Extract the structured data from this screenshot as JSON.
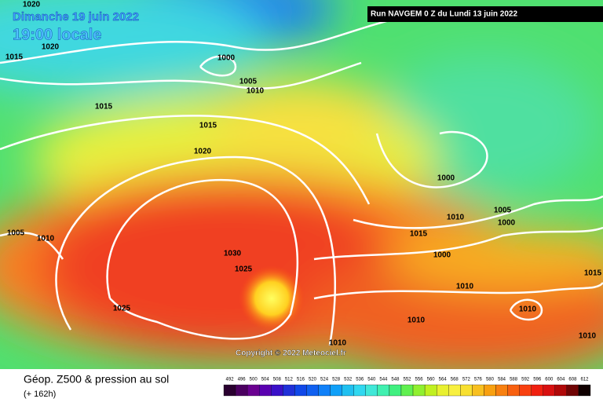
{
  "header": {
    "date": "Dimanche 19 juin 2022",
    "time": "19:00 locale",
    "run": "Run NAVGEM 0 Z du Lundi 13 juin 2022"
  },
  "copyright": "Copyright © 2022 Meteociel.fr",
  "footer": {
    "title": "Géop. Z500 & pression au sol",
    "lead": "(+ 162h)"
  },
  "isobar_labels": [
    1020,
    1020,
    1015,
    1000,
    1005,
    1010,
    1015,
    1015,
    1020,
    1000,
    1010,
    1005,
    1000,
    1015,
    1000,
    1005,
    1010,
    1030,
    1025,
    1025,
    1010,
    1010,
    1015,
    1010,
    1010,
    1010
  ],
  "scale": {
    "ticks": [
      492,
      496,
      500,
      504,
      508,
      512,
      516,
      520,
      524,
      528,
      532,
      536,
      540,
      544,
      548,
      552,
      556,
      560,
      564,
      568,
      572,
      576,
      580,
      584,
      588,
      592,
      596,
      600,
      604,
      608,
      612
    ],
    "colors": [
      "#2a0030",
      "#4b0060",
      "#6a0090",
      "#5a00b0",
      "#3a10c8",
      "#2030d8",
      "#1048e8",
      "#1060f0",
      "#1080f8",
      "#10a0f8",
      "#20c0f0",
      "#30d8f0",
      "#40e8d8",
      "#40f0b0",
      "#40f080",
      "#60f050",
      "#90f030",
      "#c0f020",
      "#e8f030",
      "#f8f040",
      "#f8e030",
      "#f8c020",
      "#f8a010",
      "#f88010",
      "#f86010",
      "#f84010",
      "#f02010",
      "#d81010",
      "#b00808",
      "#700404",
      "#100000"
    ]
  }
}
